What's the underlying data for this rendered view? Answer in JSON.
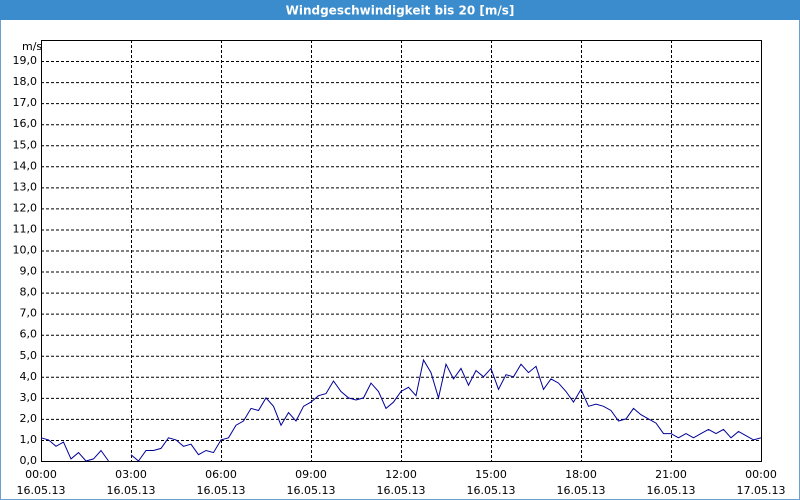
{
  "chart_data": {
    "type": "line",
    "title": "Windgeschwindigkeit bis 20 [m/s]",
    "y_label": "m/s",
    "x": [
      0,
      0.25,
      0.5,
      0.75,
      1,
      1.25,
      1.5,
      1.75,
      2,
      2.25,
      2.5,
      2.75,
      3,
      3.25,
      3.5,
      3.75,
      4,
      4.25,
      4.5,
      4.75,
      5,
      5.25,
      5.5,
      5.75,
      6,
      6.25,
      6.5,
      6.75,
      7,
      7.25,
      7.5,
      7.75,
      8,
      8.25,
      8.5,
      8.75,
      9,
      9.25,
      9.5,
      9.75,
      10,
      10.25,
      10.5,
      10.75,
      11,
      11.25,
      11.5,
      11.75,
      12,
      12.25,
      12.5,
      12.75,
      13,
      13.25,
      13.5,
      13.75,
      14,
      14.25,
      14.5,
      14.75,
      15,
      15.25,
      15.5,
      15.75,
      16,
      16.25,
      16.5,
      16.75,
      17,
      17.25,
      17.5,
      17.75,
      18,
      18.25,
      18.5,
      18.75,
      19,
      19.25,
      19.5,
      19.75,
      20,
      20.25,
      20.5,
      20.75,
      21,
      21.25,
      21.5,
      21.75,
      22,
      22.25,
      22.5,
      22.75,
      23,
      23.25,
      23.5,
      23.75,
      24
    ],
    "values": [
      1.1,
      1.0,
      0.7,
      0.9,
      0.1,
      0.4,
      0.0,
      0.1,
      0.5,
      0.0,
      null,
      null,
      0.3,
      0.0,
      0.5,
      0.5,
      0.6,
      1.1,
      1.0,
      0.7,
      0.8,
      0.3,
      0.5,
      0.4,
      1.0,
      1.1,
      1.7,
      1.9,
      2.5,
      2.4,
      3.0,
      2.6,
      1.7,
      2.3,
      1.9,
      2.6,
      2.8,
      3.1,
      3.2,
      3.8,
      3.3,
      3.0,
      2.9,
      3.0,
      3.7,
      3.3,
      2.5,
      2.8,
      3.3,
      3.5,
      3.1,
      4.8,
      4.2,
      3.0,
      4.6,
      3.9,
      4.4,
      3.6,
      4.3,
      4.0,
      4.4,
      3.4,
      4.1,
      4.0,
      4.6,
      4.2,
      4.5,
      3.4,
      3.9,
      3.7,
      3.3,
      2.8,
      3.4,
      2.6,
      2.7,
      2.6,
      2.4,
      1.9,
      2.0,
      2.5,
      2.2,
      2.0,
      1.8,
      1.3,
      1.3,
      1.1,
      1.3,
      1.1,
      1.3,
      1.5,
      1.3,
      1.5,
      1.1,
      1.4,
      1.2,
      1.0,
      1.1
    ],
    "color": "#000099",
    "xlim": [
      0,
      24
    ],
    "xticks": [
      {
        "value": 0,
        "label": "00:00",
        "date": "16.05.13"
      },
      {
        "value": 3,
        "label": "03:00",
        "date": "16.05.13"
      },
      {
        "value": 6,
        "label": "06:00",
        "date": "16.05.13"
      },
      {
        "value": 9,
        "label": "09:00",
        "date": "16.05.13"
      },
      {
        "value": 12,
        "label": "12:00",
        "date": "16.05.13"
      },
      {
        "value": 15,
        "label": "15:00",
        "date": "16.05.13"
      },
      {
        "value": 18,
        "label": "18:00",
        "date": "16.05.13"
      },
      {
        "value": 21,
        "label": "21:00",
        "date": "16.05.13"
      },
      {
        "value": 24,
        "label": "00:00",
        "date": "17.05.13"
      }
    ],
    "ylim": [
      0,
      20
    ],
    "yticks": [
      {
        "value": 0,
        "label": "0,0"
      },
      {
        "value": 1,
        "label": "1,0"
      },
      {
        "value": 2,
        "label": "2,0"
      },
      {
        "value": 3,
        "label": "3,0"
      },
      {
        "value": 4,
        "label": "4,0"
      },
      {
        "value": 5,
        "label": "5,0"
      },
      {
        "value": 6,
        "label": "6,0"
      },
      {
        "value": 7,
        "label": "7,0"
      },
      {
        "value": 8,
        "label": "8,0"
      },
      {
        "value": 9,
        "label": "9,0"
      },
      {
        "value": 10,
        "label": "10,0"
      },
      {
        "value": 11,
        "label": "11,0"
      },
      {
        "value": 12,
        "label": "12,0"
      },
      {
        "value": 13,
        "label": "13,0"
      },
      {
        "value": 14,
        "label": "14,0"
      },
      {
        "value": 15,
        "label": "15,0"
      },
      {
        "value": 16,
        "label": "16,0"
      },
      {
        "value": 17,
        "label": "17,0"
      },
      {
        "value": 18,
        "label": "18,0"
      },
      {
        "value": 19,
        "label": "19,0"
      }
    ],
    "grid": true
  }
}
